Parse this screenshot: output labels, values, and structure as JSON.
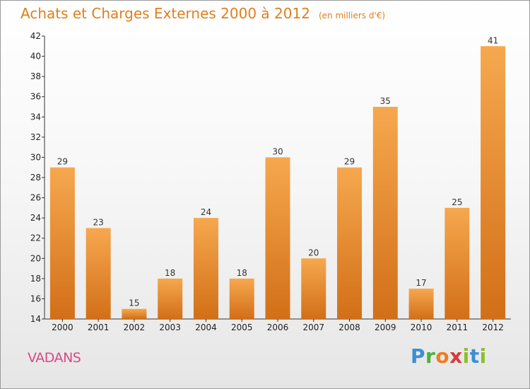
{
  "title": "Achats et Charges Externes 2000 à 2012",
  "unit": "(en milliers d'€)",
  "commune": "VADANS",
  "logo_text": "Proxiti",
  "colors": {
    "title": "#e07f1c",
    "commune": "#d74a87",
    "bar_light": "#f6a84e",
    "bar_dark": "#d26f18"
  },
  "chart_data": {
    "type": "bar",
    "title": "Achats et Charges Externes 2000 à 2012",
    "subtitle": "(en milliers d'€)",
    "xlabel": "",
    "ylabel": "",
    "categories": [
      "2000",
      "2001",
      "2002",
      "2003",
      "2004",
      "2005",
      "2006",
      "2007",
      "2008",
      "2009",
      "2010",
      "2011",
      "2012"
    ],
    "values": [
      29,
      23,
      15,
      18,
      24,
      18,
      30,
      20,
      29,
      35,
      17,
      25,
      41
    ],
    "ylim": [
      14,
      42
    ],
    "yticks": [
      14,
      16,
      18,
      20,
      22,
      24,
      26,
      28,
      30,
      32,
      34,
      36,
      38,
      40,
      42
    ],
    "grid": false,
    "legend": "none"
  }
}
